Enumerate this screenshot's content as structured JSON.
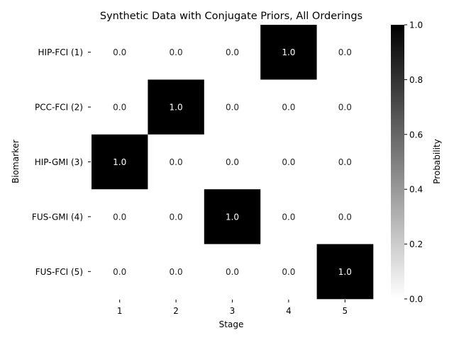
{
  "chart_data": {
    "type": "heatmap",
    "title": "Synthetic Data with Conjugate Priors, All Orderings",
    "xlabel": "Stage",
    "ylabel": "Biomarker",
    "x_categories": [
      "1",
      "2",
      "3",
      "4",
      "5"
    ],
    "y_categories": [
      "HIP-FCI (1)",
      "PCC-FCI (2)",
      "HIP-GMI (3)",
      "FUS-GMI (4)",
      "FUS-FCI (5)"
    ],
    "values": [
      [
        0.0,
        0.0,
        0.0,
        1.0,
        0.0
      ],
      [
        0.0,
        1.0,
        0.0,
        0.0,
        0.0
      ],
      [
        1.0,
        0.0,
        0.0,
        0.0,
        0.0
      ],
      [
        0.0,
        0.0,
        1.0,
        0.0,
        0.0
      ],
      [
        0.0,
        0.0,
        0.0,
        0.0,
        1.0
      ]
    ],
    "value_format": "0.0",
    "colormap": "Greys",
    "color_low": "#ffffff",
    "color_high": "#000000",
    "colorbar": {
      "label": "Probability",
      "range": [
        0.0,
        1.0
      ],
      "ticks": [
        "0.0",
        "0.2",
        "0.4",
        "0.6",
        "0.8",
        "1.0"
      ]
    }
  }
}
